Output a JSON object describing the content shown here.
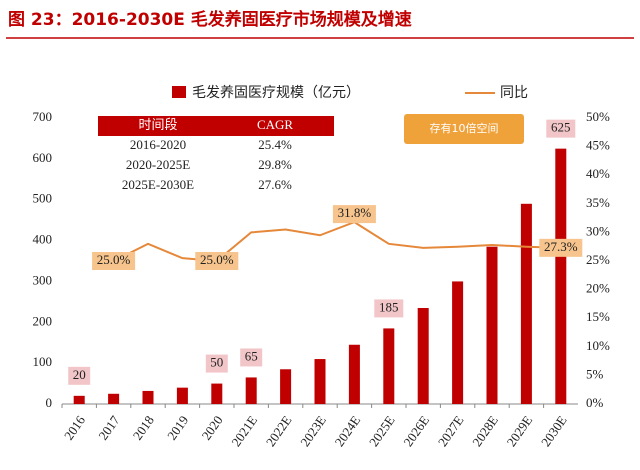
{
  "chart_data": {
    "type": "bar-line",
    "title": "图 23：2016-2030E 毛发养固医疗市场规模及增速",
    "categories": [
      "2016",
      "2017",
      "2018",
      "2019",
      "2020",
      "2021E",
      "2022E",
      "2023E",
      "2024E",
      "2025E",
      "2026E",
      "2027E",
      "2028E",
      "2029E",
      "2030E"
    ],
    "series": [
      {
        "name": "毛发养固医疗规模（亿元）",
        "color": "#c00000",
        "type": "bar",
        "values": [
          20,
          25,
          32,
          40,
          50,
          65,
          85,
          110,
          145,
          185,
          235,
          300,
          385,
          490,
          625
        ],
        "value_labels": [
          "20",
          null,
          null,
          null,
          "50",
          "65",
          null,
          null,
          null,
          "185",
          null,
          null,
          null,
          null,
          "625"
        ]
      },
      {
        "name": "同比",
        "color": "#e5883a",
        "type": "line",
        "axis": "y2",
        "values": [
          null,
          25.0,
          28.0,
          25.5,
          25.0,
          30.0,
          30.5,
          29.5,
          31.8,
          28.0,
          27.3,
          27.5,
          27.8,
          27.5,
          27.3
        ],
        "value_labels": [
          null,
          "25.0%",
          null,
          null,
          "25.0%",
          null,
          null,
          null,
          "31.8%",
          null,
          null,
          null,
          null,
          null,
          "27.3%"
        ]
      }
    ],
    "ylim": [
      0,
      700
    ],
    "yticks": [
      0,
      100,
      200,
      300,
      400,
      500,
      600,
      700
    ],
    "y2lim": [
      0,
      50
    ],
    "y2ticks": [
      {
        "value": 0,
        "label": "0%"
      },
      {
        "value": 5,
        "label": "5%"
      },
      {
        "value": 10,
        "label": "10%"
      },
      {
        "value": 15,
        "label": "15%"
      },
      {
        "value": 20,
        "label": "20%"
      },
      {
        "value": 25,
        "label": "25%"
      },
      {
        "value": 30,
        "label": "30%"
      },
      {
        "value": 35,
        "label": "35%"
      },
      {
        "value": 40,
        "label": "40%"
      },
      {
        "value": 45,
        "label": "45%"
      },
      {
        "value": 50,
        "label": "50%"
      }
    ],
    "annotation": "存有10倍空间",
    "table": {
      "header": [
        "时间段",
        "CAGR"
      ],
      "rows": [
        [
          "2016-2020",
          "25.4%"
        ],
        [
          "2020-2025E",
          "29.8%"
        ],
        [
          "2025E-2030E",
          "27.6%"
        ]
      ]
    }
  }
}
